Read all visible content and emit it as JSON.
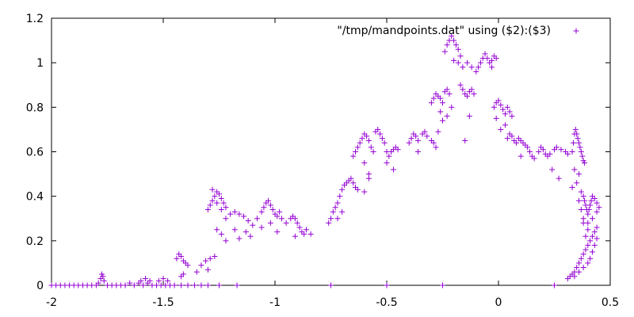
{
  "chart_data": {
    "type": "scatter",
    "title": "",
    "xlabel": "",
    "ylabel": "",
    "xlim": [
      -2,
      0.5
    ],
    "ylim": [
      0,
      1.2
    ],
    "x_ticks": [
      -2,
      -1.5,
      -1,
      -0.5,
      0,
      0.5
    ],
    "x_tick_labels": [
      "-2",
      "-1.5",
      "-1",
      "-0.5",
      "0",
      "0.5"
    ],
    "y_ticks": [
      0,
      0.2,
      0.4,
      0.6,
      0.8,
      1,
      1.2
    ],
    "y_tick_labels": [
      "0",
      "0.2",
      "0.4",
      "0.6",
      "0.8",
      "1",
      "1.2"
    ],
    "grid": false,
    "legend_position": "top-right",
    "marker": "plus",
    "color": "#9400D3",
    "series": [
      {
        "name": "\"/tmp/mandpoints.dat\" using ($2):($3)",
        "points": [
          [
            -2.0,
            0.0
          ],
          [
            -1.98,
            0.0
          ],
          [
            -1.96,
            0.0
          ],
          [
            -1.94,
            0.0
          ],
          [
            -1.92,
            0.0
          ],
          [
            -1.9,
            0.0
          ],
          [
            -1.88,
            0.0
          ],
          [
            -1.86,
            0.0
          ],
          [
            -1.84,
            0.0
          ],
          [
            -1.82,
            0.0
          ],
          [
            -1.8,
            0.0
          ],
          [
            -1.79,
            0.01
          ],
          [
            -1.78,
            0.03
          ],
          [
            -1.775,
            0.05
          ],
          [
            -1.77,
            0.04
          ],
          [
            -1.765,
            0.02
          ],
          [
            -1.75,
            0.0
          ],
          [
            -1.73,
            0.0
          ],
          [
            -1.71,
            0.0
          ],
          [
            -1.69,
            0.0
          ],
          [
            -1.67,
            0.0
          ],
          [
            -1.65,
            0.01
          ],
          [
            -1.63,
            0.0
          ],
          [
            -1.61,
            0.01
          ],
          [
            -1.59,
            0.0
          ],
          [
            -1.57,
            0.01
          ],
          [
            -1.55,
            0.0
          ],
          [
            -1.53,
            0.0
          ],
          [
            -1.51,
            0.0
          ],
          [
            -1.49,
            0.0
          ],
          [
            -1.47,
            0.0
          ],
          [
            -1.45,
            0.0
          ],
          [
            -1.42,
            0.0
          ],
          [
            -1.39,
            0.0
          ],
          [
            -1.36,
            0.0
          ],
          [
            -1.33,
            0.0
          ],
          [
            -1.3,
            0.0
          ],
          [
            -1.25,
            0.0
          ],
          [
            -1.17,
            0.0
          ],
          [
            -0.75,
            0.0
          ],
          [
            -0.5,
            0.0
          ],
          [
            -0.25,
            0.0
          ],
          [
            0.25,
            0.0
          ],
          [
            -1.6,
            0.02
          ],
          [
            -1.58,
            0.03
          ],
          [
            -1.56,
            0.02
          ],
          [
            -1.52,
            0.02
          ],
          [
            -1.5,
            0.03
          ],
          [
            -1.48,
            0.02
          ],
          [
            -1.44,
            0.12
          ],
          [
            -1.43,
            0.14
          ],
          [
            -1.42,
            0.13
          ],
          [
            -1.41,
            0.11
          ],
          [
            -1.4,
            0.1
          ],
          [
            -1.39,
            0.09
          ],
          [
            -1.42,
            0.04
          ],
          [
            -1.41,
            0.05
          ],
          [
            -1.35,
            0.06
          ],
          [
            -1.33,
            0.09
          ],
          [
            -1.31,
            0.11
          ],
          [
            -1.29,
            0.12
          ],
          [
            -1.27,
            0.13
          ],
          [
            -1.3,
            0.07
          ],
          [
            -1.3,
            0.34
          ],
          [
            -1.29,
            0.36
          ],
          [
            -1.28,
            0.38
          ],
          [
            -1.27,
            0.4
          ],
          [
            -1.26,
            0.42
          ],
          [
            -1.25,
            0.41
          ],
          [
            -1.24,
            0.39
          ],
          [
            -1.23,
            0.37
          ],
          [
            -1.22,
            0.35
          ],
          [
            -1.28,
            0.43
          ],
          [
            -1.26,
            0.37
          ],
          [
            -1.24,
            0.34
          ],
          [
            -1.22,
            0.3
          ],
          [
            -1.2,
            0.32
          ],
          [
            -1.18,
            0.33
          ],
          [
            -1.16,
            0.32
          ],
          [
            -1.14,
            0.31
          ],
          [
            -1.12,
            0.29
          ],
          [
            -1.1,
            0.27
          ],
          [
            -1.08,
            0.3
          ],
          [
            -1.06,
            0.26
          ],
          [
            -1.13,
            0.24
          ],
          [
            -1.16,
            0.21
          ],
          [
            -1.18,
            0.25
          ],
          [
            -1.11,
            0.22
          ],
          [
            -1.26,
            0.25
          ],
          [
            -1.24,
            0.23
          ],
          [
            -1.22,
            0.2
          ],
          [
            -1.06,
            0.33
          ],
          [
            -1.05,
            0.35
          ],
          [
            -1.04,
            0.37
          ],
          [
            -1.03,
            0.38
          ],
          [
            -1.02,
            0.36
          ],
          [
            -1.01,
            0.34
          ],
          [
            -1.0,
            0.32
          ],
          [
            -0.99,
            0.31
          ],
          [
            -0.98,
            0.33
          ],
          [
            -0.97,
            0.3
          ],
          [
            -1.02,
            0.28
          ],
          [
            -0.99,
            0.24
          ],
          [
            -0.95,
            0.28
          ],
          [
            -0.93,
            0.3
          ],
          [
            -0.92,
            0.31
          ],
          [
            -0.91,
            0.3
          ],
          [
            -0.9,
            0.28
          ],
          [
            -0.89,
            0.26
          ],
          [
            -0.88,
            0.24
          ],
          [
            -0.87,
            0.23
          ],
          [
            -0.86,
            0.25
          ],
          [
            -0.84,
            0.23
          ],
          [
            -0.91,
            0.22
          ],
          [
            -0.76,
            0.28
          ],
          [
            -0.75,
            0.3
          ],
          [
            -0.74,
            0.33
          ],
          [
            -0.73,
            0.35
          ],
          [
            -0.72,
            0.37
          ],
          [
            -0.71,
            0.4
          ],
          [
            -0.7,
            0.43
          ],
          [
            -0.69,
            0.45
          ],
          [
            -0.68,
            0.46
          ],
          [
            -0.67,
            0.47
          ],
          [
            -0.66,
            0.48
          ],
          [
            -0.65,
            0.46
          ],
          [
            -0.64,
            0.44
          ],
          [
            -0.63,
            0.43
          ],
          [
            -0.72,
            0.3
          ],
          [
            -0.7,
            0.33
          ],
          [
            -0.65,
            0.58
          ],
          [
            -0.64,
            0.6
          ],
          [
            -0.63,
            0.62
          ],
          [
            -0.62,
            0.64
          ],
          [
            -0.61,
            0.66
          ],
          [
            -0.6,
            0.68
          ],
          [
            -0.59,
            0.67
          ],
          [
            -0.58,
            0.65
          ],
          [
            -0.57,
            0.62
          ],
          [
            -0.56,
            0.6
          ],
          [
            -0.6,
            0.55
          ],
          [
            -0.58,
            0.5
          ],
          [
            -0.6,
            0.42
          ],
          [
            -0.58,
            0.48
          ],
          [
            -0.55,
            0.69
          ],
          [
            -0.54,
            0.7
          ],
          [
            -0.53,
            0.68
          ],
          [
            -0.52,
            0.66
          ],
          [
            -0.51,
            0.64
          ],
          [
            -0.5,
            0.6
          ],
          [
            -0.49,
            0.58
          ],
          [
            -0.48,
            0.6
          ],
          [
            -0.47,
            0.61
          ],
          [
            -0.46,
            0.62
          ],
          [
            -0.45,
            0.61
          ],
          [
            -0.47,
            0.52
          ],
          [
            -0.5,
            0.55
          ],
          [
            -0.4,
            0.64
          ],
          [
            -0.39,
            0.66
          ],
          [
            -0.38,
            0.68
          ],
          [
            -0.37,
            0.67
          ],
          [
            -0.36,
            0.65
          ],
          [
            -0.34,
            0.68
          ],
          [
            -0.33,
            0.69
          ],
          [
            -0.32,
            0.67
          ],
          [
            -0.3,
            0.65
          ],
          [
            -0.29,
            0.64
          ],
          [
            -0.28,
            0.62
          ],
          [
            -0.36,
            0.6
          ],
          [
            -0.3,
            0.82
          ],
          [
            -0.29,
            0.84
          ],
          [
            -0.28,
            0.86
          ],
          [
            -0.27,
            0.85
          ],
          [
            -0.26,
            0.84
          ],
          [
            -0.25,
            0.82
          ],
          [
            -0.24,
            0.87
          ],
          [
            -0.23,
            0.88
          ],
          [
            -0.22,
            0.86
          ],
          [
            -0.21,
            0.8
          ],
          [
            -0.26,
            0.78
          ],
          [
            -0.25,
            0.74
          ],
          [
            -0.27,
            0.69
          ],
          [
            -0.23,
            0.76
          ],
          [
            -0.24,
            1.05
          ],
          [
            -0.23,
            1.08
          ],
          [
            -0.22,
            1.1
          ],
          [
            -0.21,
            1.12
          ],
          [
            -0.2,
            1.1
          ],
          [
            -0.19,
            1.08
          ],
          [
            -0.18,
            1.06
          ],
          [
            -0.17,
            1.03
          ],
          [
            -0.16,
            0.98
          ],
          [
            -0.2,
            1.01
          ],
          [
            -0.18,
            1.0
          ],
          [
            -0.17,
            0.9
          ],
          [
            -0.16,
            0.88
          ],
          [
            -0.15,
            0.86
          ],
          [
            -0.14,
            0.85
          ],
          [
            -0.13,
            0.87
          ],
          [
            -0.12,
            0.88
          ],
          [
            -0.11,
            0.86
          ],
          [
            -0.15,
            0.65
          ],
          [
            -0.13,
            0.76
          ],
          [
            -0.14,
            1.0
          ],
          [
            -0.12,
            0.98
          ],
          [
            -0.1,
            0.96
          ],
          [
            -0.09,
            0.98
          ],
          [
            -0.08,
            1.0
          ],
          [
            -0.07,
            1.02
          ],
          [
            -0.06,
            1.04
          ],
          [
            -0.05,
            1.02
          ],
          [
            -0.04,
            1.0
          ],
          [
            -0.03,
            1.01
          ],
          [
            -0.02,
            1.03
          ],
          [
            -0.01,
            1.02
          ],
          [
            -0.03,
            0.98
          ],
          [
            -0.02,
            0.8
          ],
          [
            -0.01,
            0.82
          ],
          [
            0.0,
            0.83
          ],
          [
            0.01,
            0.81
          ],
          [
            0.02,
            0.79
          ],
          [
            0.03,
            0.77
          ],
          [
            0.04,
            0.8
          ],
          [
            0.05,
            0.78
          ],
          [
            0.06,
            0.76
          ],
          [
            0.03,
            0.72
          ],
          [
            0.01,
            0.7
          ],
          [
            -0.01,
            0.75
          ],
          [
            0.04,
            0.66
          ],
          [
            0.05,
            0.68
          ],
          [
            0.06,
            0.67
          ],
          [
            0.07,
            0.65
          ],
          [
            0.08,
            0.64
          ],
          [
            0.09,
            0.66
          ],
          [
            0.1,
            0.65
          ],
          [
            0.11,
            0.64
          ],
          [
            0.12,
            0.63
          ],
          [
            0.13,
            0.62
          ],
          [
            0.14,
            0.6
          ],
          [
            0.15,
            0.58
          ],
          [
            0.16,
            0.57
          ],
          [
            0.1,
            0.58
          ],
          [
            0.18,
            0.6
          ],
          [
            0.19,
            0.62
          ],
          [
            0.2,
            0.61
          ],
          [
            0.21,
            0.59
          ],
          [
            0.22,
            0.58
          ],
          [
            0.23,
            0.59
          ],
          [
            0.25,
            0.61
          ],
          [
            0.26,
            0.62
          ],
          [
            0.28,
            0.61
          ],
          [
            0.3,
            0.6
          ],
          [
            0.31,
            0.59
          ],
          [
            0.24,
            0.52
          ],
          [
            0.27,
            0.48
          ],
          [
            0.33,
            0.6
          ],
          [
            0.335,
            0.64
          ],
          [
            0.34,
            0.68
          ],
          [
            0.345,
            0.7
          ],
          [
            0.35,
            0.68
          ],
          [
            0.355,
            0.66
          ],
          [
            0.36,
            0.64
          ],
          [
            0.365,
            0.62
          ],
          [
            0.37,
            0.6
          ],
          [
            0.375,
            0.58
          ],
          [
            0.38,
            0.56
          ],
          [
            0.385,
            0.55
          ],
          [
            0.36,
            0.5
          ],
          [
            0.34,
            0.52
          ],
          [
            0.35,
            0.46
          ],
          [
            0.33,
            0.44
          ],
          [
            0.37,
            0.42
          ],
          [
            0.38,
            0.4
          ],
          [
            0.385,
            0.38
          ],
          [
            0.39,
            0.36
          ],
          [
            0.395,
            0.34
          ],
          [
            0.4,
            0.32
          ],
          [
            0.405,
            0.34
          ],
          [
            0.41,
            0.36
          ],
          [
            0.415,
            0.38
          ],
          [
            0.42,
            0.4
          ],
          [
            0.43,
            0.39
          ],
          [
            0.44,
            0.37
          ],
          [
            0.45,
            0.35
          ],
          [
            0.44,
            0.33
          ],
          [
            0.42,
            0.3
          ],
          [
            0.4,
            0.28
          ],
          [
            0.38,
            0.3
          ],
          [
            0.36,
            0.38
          ],
          [
            0.37,
            0.34
          ],
          [
            0.31,
            0.03
          ],
          [
            0.32,
            0.04
          ],
          [
            0.33,
            0.05
          ],
          [
            0.34,
            0.06
          ],
          [
            0.35,
            0.08
          ],
          [
            0.36,
            0.1
          ],
          [
            0.37,
            0.12
          ],
          [
            0.38,
            0.14
          ],
          [
            0.39,
            0.16
          ],
          [
            0.4,
            0.18
          ],
          [
            0.41,
            0.2
          ],
          [
            0.42,
            0.22
          ],
          [
            0.43,
            0.24
          ],
          [
            0.44,
            0.26
          ],
          [
            0.42,
            0.15
          ],
          [
            0.43,
            0.18
          ],
          [
            0.44,
            0.21
          ],
          [
            0.41,
            0.12
          ],
          [
            0.4,
            0.1
          ],
          [
            0.38,
            0.08
          ],
          [
            0.36,
            0.06
          ],
          [
            0.34,
            0.04
          ],
          [
            0.39,
            0.22
          ],
          [
            0.4,
            0.25
          ],
          [
            0.38,
            0.28
          ]
        ]
      }
    ]
  }
}
